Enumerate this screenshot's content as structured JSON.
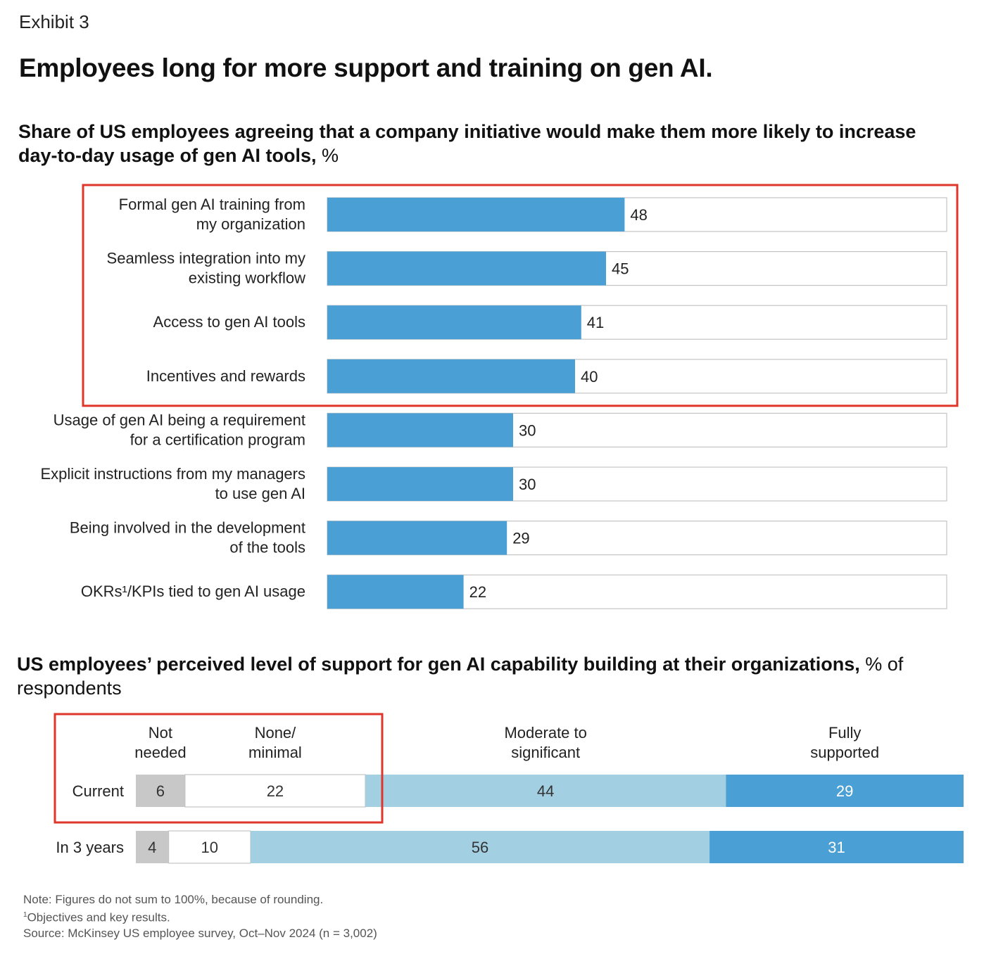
{
  "exhibit_label": "Exhibit 3",
  "title": "Employees long for more support and training on gen AI.",
  "colors": {
    "bar": "#4A9FD4",
    "light_blue": "#A3CFE3",
    "dark_blue": "#4A9FD4",
    "grey": "#C8C8C8",
    "highlight": "#E0352B"
  },
  "chart_data": [
    {
      "type": "bar",
      "orientation": "horizontal",
      "title_bold": "Share of US employees agreeing that a company initiative would make them more likely to increase day-to-day usage of gen AI tools,",
      "title_unit": " %",
      "xlim": [
        0,
        100
      ],
      "categories": [
        [
          "Formal gen AI training from",
          "my organization"
        ],
        [
          "Seamless integration into my",
          "existing workflow"
        ],
        [
          "Access to gen AI tools"
        ],
        [
          "Incentives and rewards"
        ],
        [
          "Usage of gen AI being a requirement",
          "for a certification program"
        ],
        [
          "Explicit instructions from my managers",
          "to use gen AI"
        ],
        [
          "Being involved in the development",
          "of the tools"
        ],
        [
          "OKRs¹/KPIs tied to gen AI usage"
        ]
      ],
      "values": [
        48,
        45,
        41,
        40,
        30,
        30,
        29,
        22
      ],
      "highlighted": "first 4 rows"
    },
    {
      "type": "bar",
      "orientation": "horizontal-stacked",
      "title_bold": "US employees’ perceived level of support for gen AI capability building at their organizations,",
      "title_unit": " % of respondents",
      "segment_labels": [
        [
          "Not",
          "needed"
        ],
        [
          "None/",
          "minimal"
        ],
        [
          "Moderate to",
          "significant"
        ],
        [
          "Fully",
          "supported"
        ]
      ],
      "categories": [
        "Current",
        "In 3 years"
      ],
      "series": [
        {
          "name": "Not needed",
          "values": [
            6,
            4
          ]
        },
        {
          "name": "None/minimal",
          "values": [
            22,
            10
          ]
        },
        {
          "name": "Moderate to significant",
          "values": [
            44,
            56
          ]
        },
        {
          "name": "Fully supported",
          "values": [
            29,
            31
          ]
        }
      ],
      "highlighted": "Not needed and None/minimal for Current"
    }
  ],
  "notes": {
    "note": "Note: Figures do not sum to 100%, because of rounding.",
    "footnote_mark": "1",
    "footnote": "Objectives and key results.",
    "source": "Source: McKinsey US employee survey, Oct–Nov 2024 (n = 3,002)"
  }
}
